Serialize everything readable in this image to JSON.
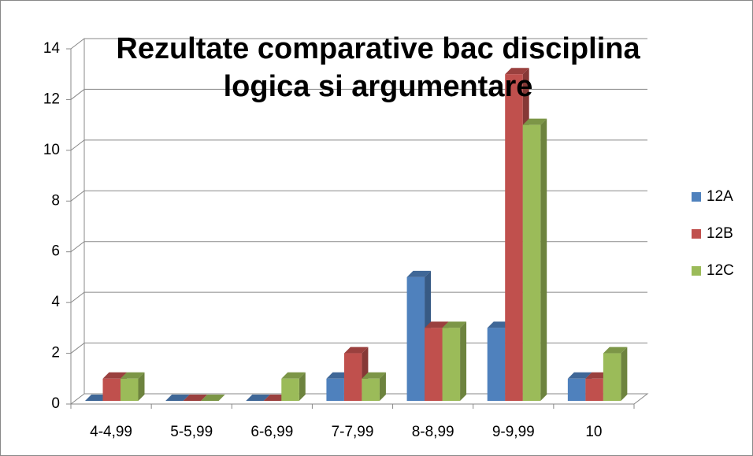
{
  "chart_data": {
    "type": "bar3d",
    "title": "Rezultate comparative bac disciplina logica si argumentare",
    "categories": [
      "4-4,99",
      "5-5,99",
      "6-6,99",
      "7-7,99",
      "8-8,99",
      "9-9,99",
      "10"
    ],
    "series": [
      {
        "name": "12A",
        "color": "#4f81bd",
        "values": [
          0,
          0,
          0,
          1,
          5,
          3,
          1
        ]
      },
      {
        "name": "12B",
        "color": "#c0504d",
        "values": [
          1,
          0,
          0,
          2,
          3,
          13,
          1
        ]
      },
      {
        "name": "12C",
        "color": "#9bbb59",
        "values": [
          1,
          0,
          1,
          1,
          3,
          11,
          2
        ]
      }
    ],
    "ylim": [
      0,
      14
    ],
    "yticks": [
      0,
      2,
      4,
      6,
      8,
      10,
      12,
      14
    ],
    "grid": true,
    "legend": "right"
  }
}
